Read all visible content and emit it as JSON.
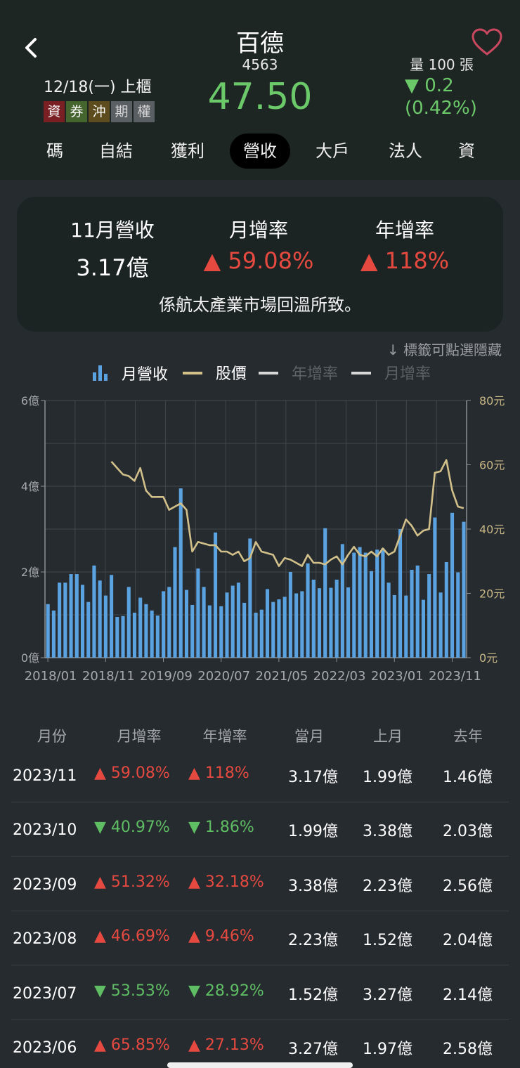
{
  "header": {
    "title": "百德",
    "code": "4563",
    "price": "47.50",
    "date": "12/18(一) 上櫃",
    "tags": [
      "資",
      "券",
      "沖",
      "期",
      "權"
    ],
    "volume": "量 100 張",
    "change": "▼ 0.2",
    "change_pct": "(0.42%)"
  },
  "tabs": [
    "碼",
    "自結",
    "獲利",
    "營收",
    "大戶",
    "法人",
    "資"
  ],
  "active_tab": "營收",
  "summary": {
    "labels": [
      "11月營收",
      "月增率",
      "年增率"
    ],
    "values": [
      "3.17億",
      "▲ 59.08%",
      "▲ 118%"
    ],
    "note": "係航太產業市場回溫所致。"
  },
  "hint": "↓ 標籤可點選隱藏",
  "legend": [
    "月營收",
    "股價",
    "年增率",
    "月增率"
  ],
  "colors": {
    "bar": "#5aa2e0",
    "line": "#d2c08a",
    "up": "#e5493f",
    "down": "#5fbd63"
  },
  "chart_data": {
    "type": "bar",
    "x_tick_labels": [
      "2018/01",
      "2018/11",
      "2019/09",
      "2020/07",
      "2021/05",
      "2022/03",
      "2023/01",
      "2023/11"
    ],
    "y_left_ticks": [
      "0億",
      "2億",
      "4億",
      "6億"
    ],
    "y_right_ticks": [
      "0元",
      "20元",
      "40元",
      "60元",
      "80元"
    ],
    "ylim_left": [
      0,
      6
    ],
    "ylim_right": [
      0,
      80
    ],
    "series": [
      {
        "name": "月營收",
        "type": "bar",
        "axis": "left",
        "values": [
          1.25,
          1.1,
          1.75,
          1.75,
          1.95,
          1.95,
          1.7,
          1.3,
          2.15,
          1.8,
          1.45,
          1.93,
          0.95,
          0.97,
          1.65,
          1.05,
          1.4,
          1.25,
          1.1,
          0.98,
          1.55,
          1.65,
          2.58,
          3.95,
          1.58,
          1.23,
          2.08,
          1.65,
          1.22,
          2.92,
          1.2,
          1.52,
          1.68,
          1.75,
          1.28,
          2.78,
          1.05,
          1.12,
          1.6,
          1.3,
          1.36,
          1.42,
          2.0,
          1.5,
          1.55,
          2.2,
          1.82,
          1.62,
          3.02,
          1.63,
          1.82,
          2.65,
          1.64,
          2.45,
          2.58,
          2.45,
          2.02,
          2.52,
          2.55,
          1.75,
          1.46,
          3.0,
          1.45,
          2.05,
          2.15,
          1.35,
          1.95,
          3.27,
          1.52,
          2.23,
          3.38,
          1.99,
          3.17
        ]
      },
      {
        "name": "股價",
        "type": "line",
        "axis": "right",
        "start_index": 11,
        "values": [
          61,
          59,
          57,
          56.5,
          55,
          59,
          52,
          50,
          50,
          50,
          46,
          47,
          48,
          46,
          33,
          36,
          35.5,
          35,
          35,
          33,
          33,
          32,
          33,
          30,
          31,
          36,
          33,
          32.5,
          32,
          28.5,
          31,
          30.5,
          29.5,
          28.5,
          32,
          29.5,
          29.5,
          29,
          30.5,
          31.5,
          29,
          32,
          34.5,
          32,
          31.5,
          33,
          31.5,
          34,
          32,
          33,
          38,
          43,
          41,
          38,
          39.5,
          40,
          57.5,
          58,
          61.5,
          52,
          47,
          46.5
        ]
      }
    ]
  },
  "table": {
    "headers": [
      "月份",
      "月增率",
      "年增率",
      "當月",
      "上月",
      "去年"
    ],
    "rows": [
      {
        "month": "2023/11",
        "mom": "▲ 59.08%",
        "mom_dir": "up",
        "yoy": "▲ 118%",
        "yoy_dir": "up",
        "cur": "3.17億",
        "prev": "1.99億",
        "last": "1.46億"
      },
      {
        "month": "2023/10",
        "mom": "▼ 40.97%",
        "mom_dir": "down",
        "yoy": "▼ 1.86%",
        "yoy_dir": "down",
        "cur": "1.99億",
        "prev": "3.38億",
        "last": "2.03億"
      },
      {
        "month": "2023/09",
        "mom": "▲ 51.32%",
        "mom_dir": "up",
        "yoy": "▲ 32.18%",
        "yoy_dir": "up",
        "cur": "3.38億",
        "prev": "2.23億",
        "last": "2.56億"
      },
      {
        "month": "2023/08",
        "mom": "▲ 46.69%",
        "mom_dir": "up",
        "yoy": "▲ 9.46%",
        "yoy_dir": "up",
        "cur": "2.23億",
        "prev": "1.52億",
        "last": "2.04億"
      },
      {
        "month": "2023/07",
        "mom": "▼ 53.53%",
        "mom_dir": "down",
        "yoy": "▼ 28.92%",
        "yoy_dir": "down",
        "cur": "1.52億",
        "prev": "3.27億",
        "last": "2.14億"
      },
      {
        "month": "2023/06",
        "mom": "▲ 65.85%",
        "mom_dir": "up",
        "yoy": "▲ 27.13%",
        "yoy_dir": "up",
        "cur": "3.27億",
        "prev": "1.97億",
        "last": "2.58億"
      }
    ]
  }
}
